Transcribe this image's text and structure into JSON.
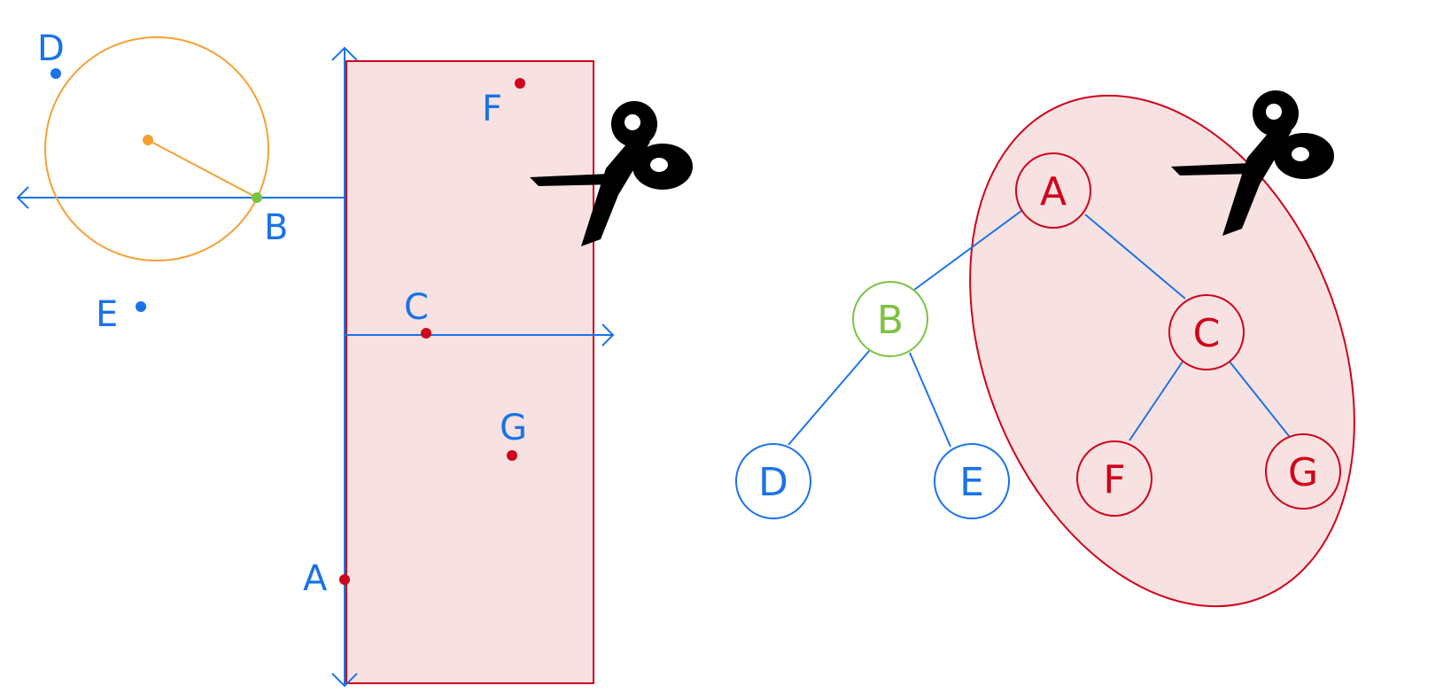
{
  "colors": {
    "blue": "#1a73e8",
    "red": "#d0021b",
    "orange": "#f5a033",
    "green": "#7cc242",
    "fill": "#f8e1e1",
    "black": "#000000"
  },
  "left_panel": {
    "points": {
      "A": "A",
      "B": "B",
      "C": "C",
      "D": "D",
      "E": "E",
      "F": "F",
      "G": "G"
    },
    "cut_icon": "scissors-icon"
  },
  "right_panel": {
    "nodes": {
      "A": "A",
      "B": "B",
      "C": "C",
      "D": "D",
      "E": "E",
      "F": "F",
      "G": "G"
    },
    "cut_icon": "scissors-icon"
  }
}
